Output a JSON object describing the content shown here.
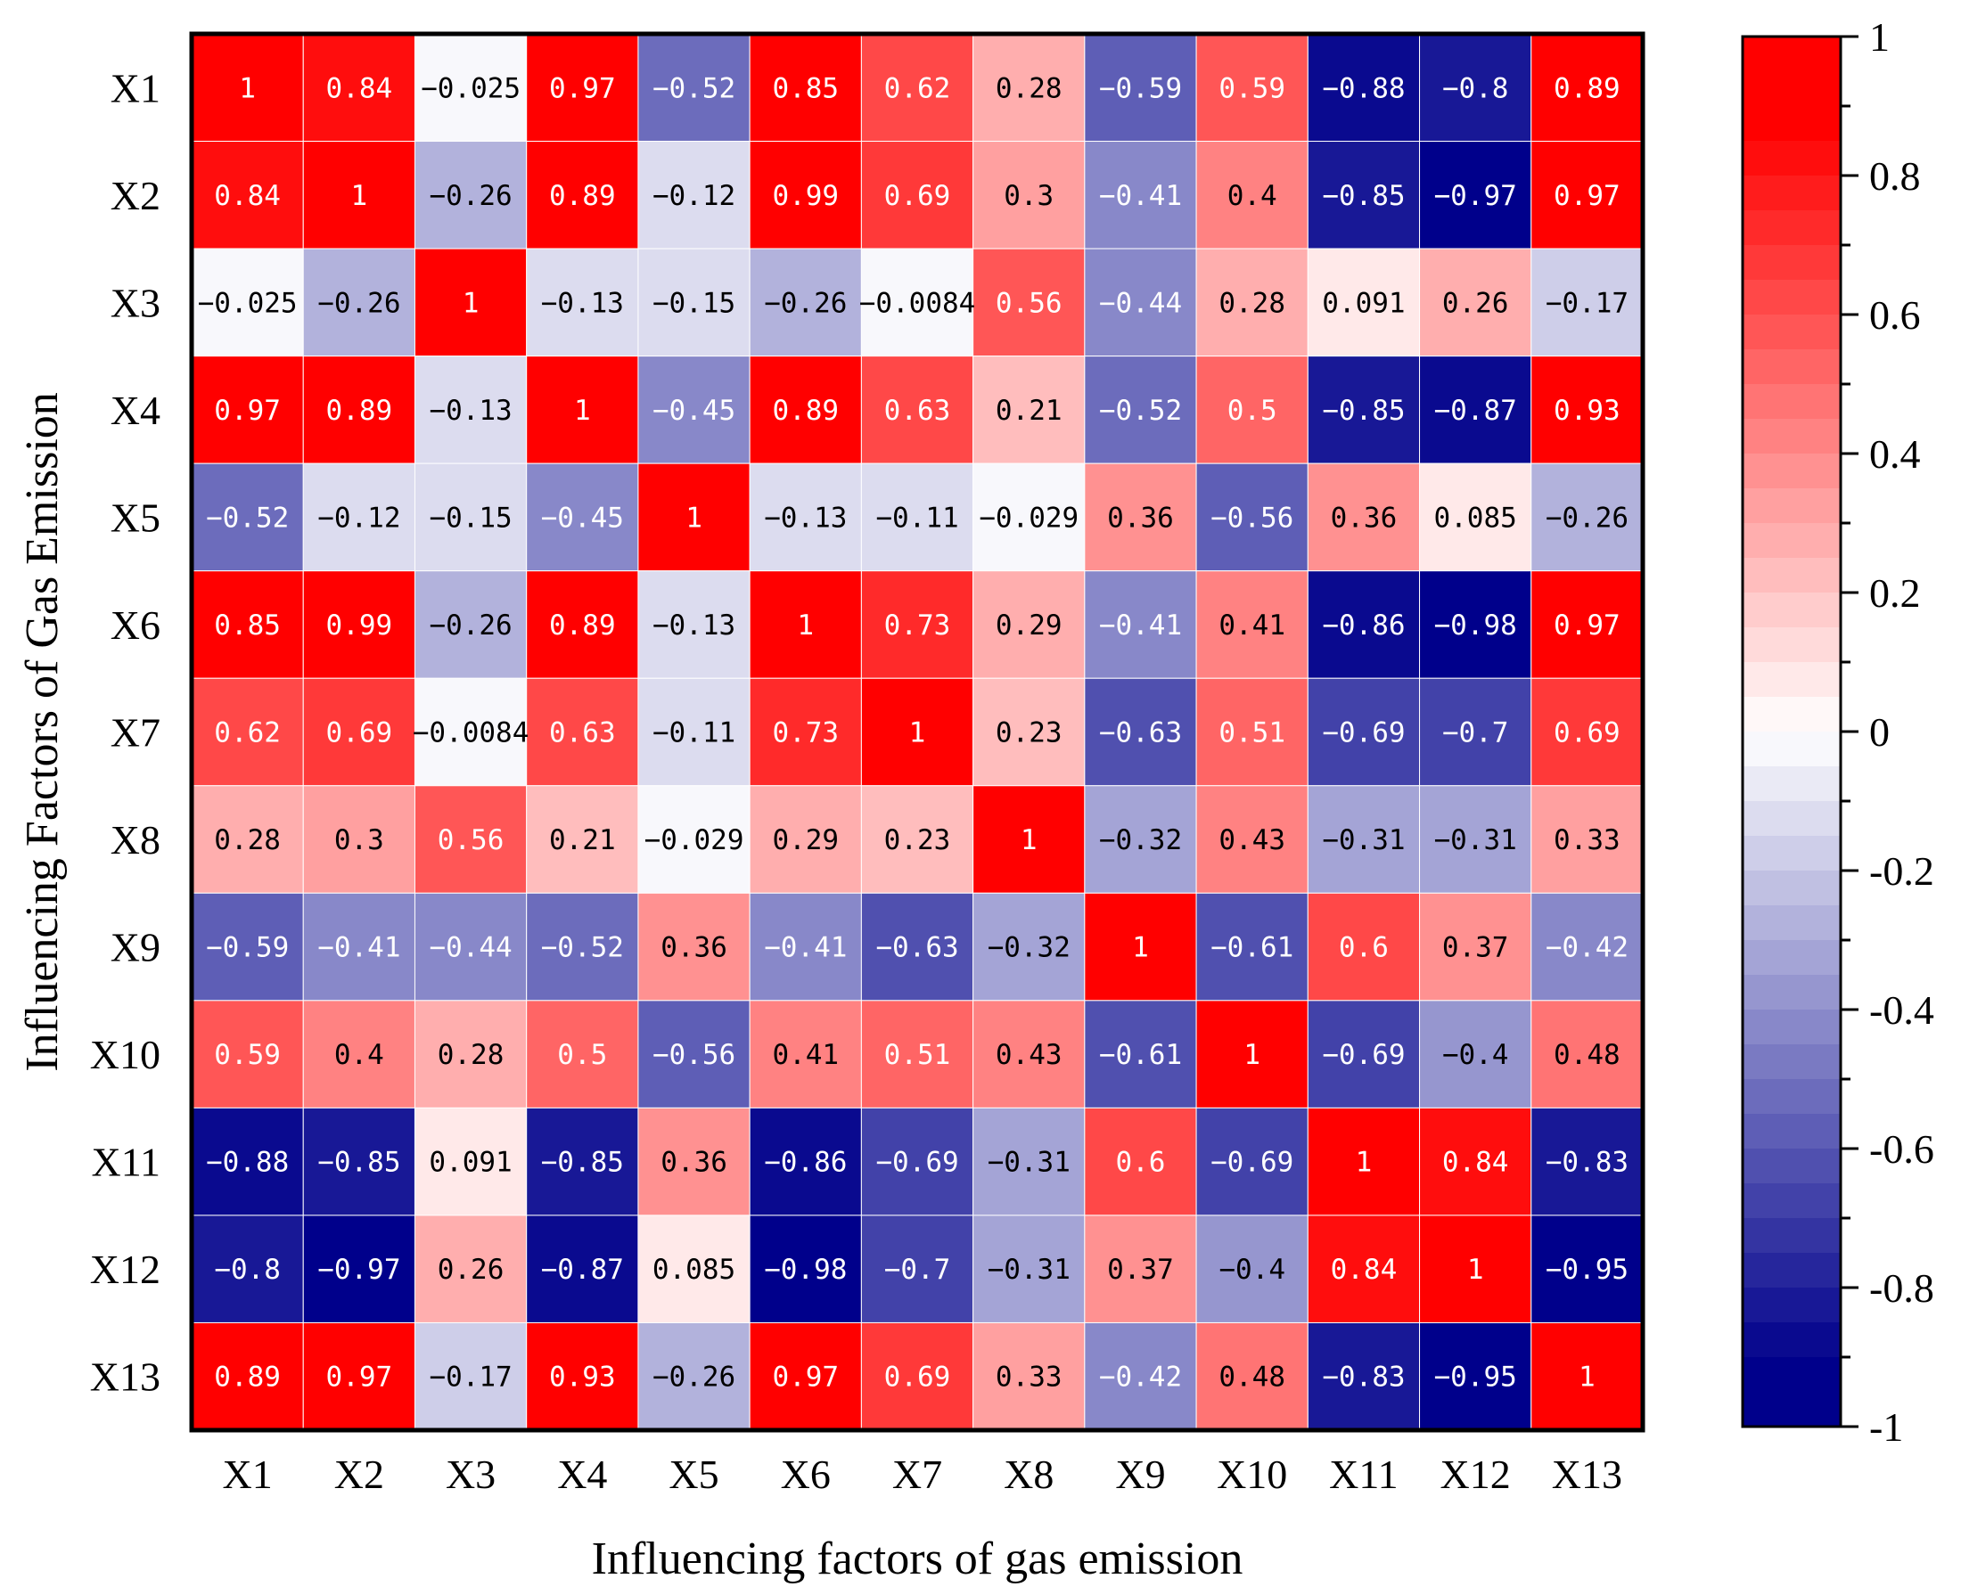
{
  "chart_data": {
    "type": "heatmap",
    "title": "",
    "xlabel": "Influencing factors of gas emission",
    "ylabel": "Influencing Factors of Gas Emission",
    "x_categories": [
      "X1",
      "X2",
      "X3",
      "X4",
      "X5",
      "X6",
      "X7",
      "X8",
      "X9",
      "X10",
      "X11",
      "X12",
      "X13"
    ],
    "y_categories": [
      "X1",
      "X2",
      "X3",
      "X4",
      "X5",
      "X6",
      "X7",
      "X8",
      "X9",
      "X10",
      "X11",
      "X12",
      "X13"
    ],
    "values": [
      [
        1,
        0.84,
        -0.025,
        0.97,
        -0.52,
        0.85,
        0.62,
        0.28,
        -0.59,
        0.59,
        -0.88,
        -0.8,
        0.89
      ],
      [
        0.84,
        1,
        -0.26,
        0.89,
        -0.12,
        0.99,
        0.69,
        0.3,
        -0.41,
        0.4,
        -0.85,
        -0.97,
        0.97
      ],
      [
        -0.025,
        -0.26,
        1,
        -0.13,
        -0.15,
        -0.26,
        -0.0084,
        0.56,
        -0.44,
        0.28,
        0.091,
        0.26,
        -0.17
      ],
      [
        0.97,
        0.89,
        -0.13,
        1,
        -0.45,
        0.89,
        0.63,
        0.21,
        -0.52,
        0.5,
        -0.85,
        -0.87,
        0.93
      ],
      [
        -0.52,
        -0.12,
        -0.15,
        -0.45,
        1,
        -0.13,
        -0.11,
        -0.029,
        0.36,
        -0.56,
        0.36,
        0.085,
        -0.26
      ],
      [
        0.85,
        0.99,
        -0.26,
        0.89,
        -0.13,
        1,
        0.73,
        0.29,
        -0.41,
        0.41,
        -0.86,
        -0.98,
        0.97
      ],
      [
        0.62,
        0.69,
        -0.0084,
        0.63,
        -0.11,
        0.73,
        1,
        0.23,
        -0.63,
        0.51,
        -0.69,
        -0.7,
        0.69
      ],
      [
        0.28,
        0.3,
        0.56,
        0.21,
        -0.029,
        0.29,
        0.23,
        1,
        -0.32,
        0.43,
        -0.31,
        -0.31,
        0.33
      ],
      [
        -0.59,
        -0.41,
        -0.44,
        -0.52,
        0.36,
        -0.41,
        -0.63,
        -0.32,
        1,
        -0.61,
        0.6,
        0.37,
        -0.42
      ],
      [
        0.59,
        0.4,
        0.28,
        0.5,
        -0.56,
        0.41,
        0.51,
        0.43,
        -0.61,
        1,
        -0.69,
        -0.4,
        0.48
      ],
      [
        -0.88,
        -0.85,
        0.091,
        -0.85,
        0.36,
        -0.86,
        -0.69,
        -0.31,
        0.6,
        -0.69,
        1,
        0.84,
        -0.83
      ],
      [
        -0.8,
        -0.97,
        0.26,
        -0.87,
        0.085,
        -0.98,
        -0.7,
        -0.31,
        0.37,
        -0.4,
        0.84,
        1,
        -0.95
      ],
      [
        0.89,
        0.97,
        -0.17,
        0.93,
        -0.26,
        0.97,
        0.69,
        0.33,
        -0.42,
        0.48,
        -0.83,
        -0.95,
        1
      ]
    ],
    "cell_labels": [
      [
        "1",
        "0.84",
        "−0.025",
        "0.97",
        "−0.52",
        "0.85",
        "0.62",
        "0.28",
        "−0.59",
        "0.59",
        "−0.88",
        "−0.8",
        "0.89"
      ],
      [
        "0.84",
        "1",
        "−0.26",
        "0.89",
        "−0.12",
        "0.99",
        "0.69",
        "0.3",
        "−0.41",
        "0.4",
        "−0.85",
        "−0.97",
        "0.97"
      ],
      [
        "−0.025",
        "−0.26",
        "1",
        "−0.13",
        "−0.15",
        "−0.26",
        "−0.0084",
        "0.56",
        "−0.44",
        "0.28",
        "0.091",
        "0.26",
        "−0.17"
      ],
      [
        "0.97",
        "0.89",
        "−0.13",
        "1",
        "−0.45",
        "0.89",
        "0.63",
        "0.21",
        "−0.52",
        "0.5",
        "−0.85",
        "−0.87",
        "0.93"
      ],
      [
        "−0.52",
        "−0.12",
        "−0.15",
        "−0.45",
        "1",
        "−0.13",
        "−0.11",
        "−0.029",
        "0.36",
        "−0.56",
        "0.36",
        "0.085",
        "−0.26"
      ],
      [
        "0.85",
        "0.99",
        "−0.26",
        "0.89",
        "−0.13",
        "1",
        "0.73",
        "0.29",
        "−0.41",
        "0.41",
        "−0.86",
        "−0.98",
        "0.97"
      ],
      [
        "0.62",
        "0.69",
        "−0.0084",
        "0.63",
        "−0.11",
        "0.73",
        "1",
        "0.23",
        "−0.63",
        "0.51",
        "−0.69",
        "−0.7",
        "0.69"
      ],
      [
        "0.28",
        "0.3",
        "0.56",
        "0.21",
        "−0.029",
        "0.29",
        "0.23",
        "1",
        "−0.32",
        "0.43",
        "−0.31",
        "−0.31",
        "0.33"
      ],
      [
        "−0.59",
        "−0.41",
        "−0.44",
        "−0.52",
        "0.36",
        "−0.41",
        "−0.63",
        "−0.32",
        "1",
        "−0.61",
        "0.6",
        "0.37",
        "−0.42"
      ],
      [
        "0.59",
        "0.4",
        "0.28",
        "0.5",
        "−0.56",
        "0.41",
        "0.51",
        "0.43",
        "−0.61",
        "1",
        "−0.69",
        "−0.4",
        "0.48"
      ],
      [
        "−0.88",
        "−0.85",
        "0.091",
        "−0.85",
        "0.36",
        "−0.86",
        "−0.69",
        "−0.31",
        "0.6",
        "−0.69",
        "1",
        "0.84",
        "−0.83"
      ],
      [
        "−0.8",
        "−0.97",
        "0.26",
        "−0.87",
        "0.085",
        "−0.98",
        "−0.7",
        "−0.31",
        "0.37",
        "−0.4",
        "0.84",
        "1",
        "−0.95"
      ],
      [
        "0.89",
        "0.97",
        "−0.17",
        "0.93",
        "−0.26",
        "0.97",
        "0.69",
        "0.33",
        "−0.42",
        "0.48",
        "−0.83",
        "−0.95",
        "1"
      ]
    ],
    "colorbar": {
      "range": [
        -1,
        1
      ],
      "ticks": [
        1,
        0.8,
        0.6,
        0.4,
        0.2,
        0,
        -0.2,
        -0.4,
        -0.6,
        -0.8,
        -1
      ],
      "tick_labels": [
        "1",
        "0.8",
        "0.6",
        "0.4",
        "0.2",
        "0",
        "-0.2",
        "-0.4",
        "-0.6",
        "-0.8",
        "-1"
      ],
      "colors": {
        "max": "#ff0000",
        "mid": "#ffffff",
        "min": "#00008b"
      },
      "levels": 40
    },
    "grid": true
  }
}
